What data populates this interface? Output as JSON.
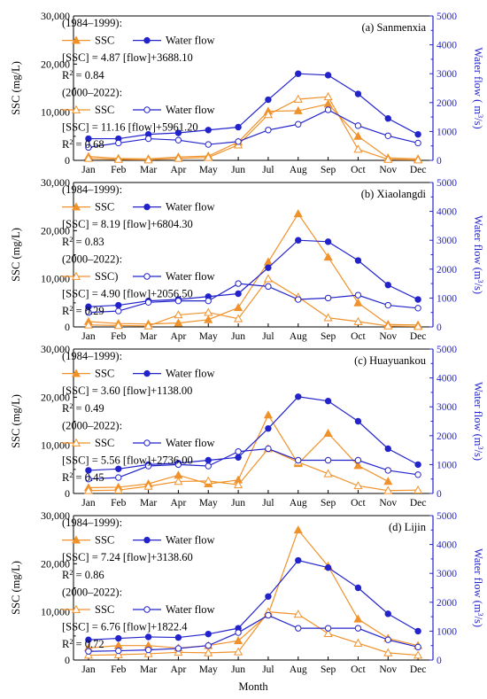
{
  "figure": {
    "xlabel": "Month",
    "colors": {
      "ssc": "#f0922b",
      "flow": "#2323cc",
      "axis": "#000000"
    }
  },
  "chart_data": [
    {
      "type": "line",
      "panel_label": "(a) Sanmenxia",
      "categories": [
        "Jan",
        "Feb",
        "Mar",
        "Apr",
        "May",
        "Jun",
        "Jul",
        "Aug",
        "Sep",
        "Oct",
        "Nov",
        "Dec"
      ],
      "y_left": {
        "label": "SSC (mg/L)",
        "ticks": [
          "0",
          "10,000",
          "20,000",
          "30,000"
        ],
        "lim": [
          0,
          30000
        ]
      },
      "y_right": {
        "label": "Water flow ( m³/s)",
        "ticks": [
          "0",
          "1000",
          "2000",
          "3000",
          "4000",
          "5000"
        ],
        "lim": [
          0,
          5000
        ]
      },
      "legend": {
        "p1_title": "(1984–1999):",
        "p1_ssc_label": "SSC",
        "p1_flow_label": "Water flow",
        "p1_eq": "[SSC] = 4.87 [flow]+3688.10",
        "p1_r2": "R² = 0.84",
        "p2_title": "(2000–2022):",
        "p2_ssc_label": "SSC",
        "p2_flow_label": "Water flow",
        "p2_eq": "[SSC] = 11.16 [flow]+5961.20",
        "p2_r2": "R² = 0.68"
      },
      "series": [
        {
          "period": "1984–1999",
          "variable": "SSC",
          "axis": "left",
          "marker": "triangle-filled",
          "values": [
            800,
            400,
            300,
            700,
            900,
            3800,
            10200,
            10300,
            11700,
            5000,
            500,
            300
          ]
        },
        {
          "period": "1984–1999",
          "variable": "Water flow",
          "axis": "right",
          "marker": "circle-filled",
          "values": [
            750,
            750,
            900,
            950,
            1050,
            1150,
            2100,
            3000,
            2950,
            2300,
            1450,
            900
          ]
        },
        {
          "period": "2000–2022",
          "variable": "SSC",
          "axis": "left",
          "marker": "triangle-open",
          "values": [
            400,
            200,
            100,
            400,
            600,
            3200,
            9500,
            12700,
            13200,
            2300,
            200,
            100
          ]
        },
        {
          "period": "2000–2022",
          "variable": "Water flow",
          "axis": "right",
          "marker": "circle-open",
          "values": [
            450,
            600,
            750,
            700,
            550,
            650,
            1050,
            1250,
            1750,
            1200,
            850,
            600
          ]
        }
      ]
    },
    {
      "type": "line",
      "panel_label": "(b) Xiaolangdi",
      "categories": [
        "Jan",
        "Feb",
        "Mar",
        "Apr",
        "May",
        "Jun",
        "Jul",
        "Aug",
        "Sep",
        "Oct",
        "Nov",
        "Dec"
      ],
      "y_left": {
        "label": "SSC (mg/L)",
        "ticks": [
          "0",
          "10,000",
          "20,000",
          "30,000"
        ],
        "lim": [
          0,
          30000
        ]
      },
      "y_right": {
        "label": "Water flow (m³/s)",
        "ticks": [
          "0",
          "1000",
          "2000",
          "3000",
          "4000",
          "5000"
        ],
        "lim": [
          0,
          5000
        ]
      },
      "legend": {
        "p1_title": "(1984–1999):",
        "p1_ssc_label": "SSC",
        "p1_flow_label": "Water flow",
        "p1_eq": "[SSC] = 8.19 [flow]+6804.30",
        "p1_r2": "R² = 0.83",
        "p2_title": "(2000–2022):",
        "p2_ssc_label": "SSC)",
        "p2_flow_label": "Water flow",
        "p2_eq": "[SSC] = 4.90 [flow]+2056.50",
        "p2_r2": "R² = 0.29"
      },
      "series": [
        {
          "period": "1984–1999",
          "variable": "SSC",
          "axis": "left",
          "marker": "triangle-filled",
          "values": [
            1100,
            700,
            600,
            800,
            1500,
            4000,
            13500,
            23500,
            14500,
            5000,
            500,
            400
          ]
        },
        {
          "period": "1984–1999",
          "variable": "Water flow",
          "axis": "right",
          "marker": "circle-filled",
          "values": [
            700,
            750,
            900,
            950,
            1050,
            1150,
            2050,
            3000,
            2950,
            2300,
            1450,
            950
          ]
        },
        {
          "period": "2000–2022",
          "variable": "SSC",
          "axis": "left",
          "marker": "triangle-open",
          "values": [
            400,
            300,
            200,
            2500,
            3000,
            1700,
            10000,
            6200,
            1900,
            1100,
            200,
            100
          ]
        },
        {
          "period": "2000–2022",
          "variable": "Water flow",
          "axis": "right",
          "marker": "circle-open",
          "values": [
            500,
            550,
            850,
            900,
            900,
            1500,
            1400,
            950,
            1000,
            1100,
            750,
            650
          ]
        }
      ]
    },
    {
      "type": "line",
      "panel_label": "(c) Huayuankou",
      "categories": [
        "Jan",
        "Feb",
        "Mar",
        "Apr",
        "May",
        "Jun",
        "Jul",
        "Aug",
        "Sep",
        "Oct",
        "Nov",
        "Dec"
      ],
      "y_left": {
        "label": "SSC (mg/L)",
        "ticks": [
          "0",
          "10,000",
          "20,000",
          "30,000"
        ],
        "lim": [
          0,
          30000
        ]
      },
      "y_right": {
        "label": "Water flow (m³/s)",
        "ticks": [
          "0",
          "1000",
          "2000",
          "3000",
          "4000",
          "5000"
        ],
        "lim": [
          0,
          5000
        ]
      },
      "legend": {
        "p1_title": "(1984–1999):",
        "p1_ssc_label": "SSC",
        "p1_flow_label": "Water flow",
        "p1_eq": "[SSC] = 3.60 [flow]+1138.00",
        "p1_r2": "R² = 0.49",
        "p2_title": "(2000–2022):",
        "p2_ssc_label": "SSC",
        "p2_flow_label": "Water flow",
        "p2_eq": "[SSC] = 5.56 [flow]+2736.00",
        "p2_r2": "R² = 0.45"
      },
      "series": [
        {
          "period": "1984–1999",
          "variable": "SSC",
          "axis": "left",
          "marker": "triangle-filled",
          "values": [
            1200,
            1300,
            2000,
            3800,
            2000,
            2800,
            16300,
            6200,
            12500,
            5800,
            2500,
            null
          ]
        },
        {
          "period": "1984–1999",
          "variable": "Water flow",
          "axis": "right",
          "marker": "circle-filled",
          "values": [
            800,
            850,
            1000,
            1050,
            1150,
            1250,
            2250,
            3350,
            3200,
            2500,
            1550,
            1000
          ]
        },
        {
          "period": "2000–2022",
          "variable": "SSC",
          "axis": "left",
          "marker": "triangle-open",
          "values": [
            600,
            700,
            1500,
            2500,
            2600,
            1800,
            9300,
            6500,
            4100,
            1600,
            600,
            700
          ]
        },
        {
          "period": "2000–2022",
          "variable": "Water flow",
          "axis": "right",
          "marker": "circle-open",
          "values": [
            500,
            550,
            950,
            1000,
            950,
            1450,
            1550,
            1150,
            1150,
            1150,
            800,
            650
          ]
        }
      ]
    },
    {
      "type": "line",
      "panel_label": "(d) Lijin",
      "categories": [
        "Jan",
        "Feb",
        "Mar",
        "Apr",
        "May",
        "Jun",
        "Jul",
        "Aug",
        "Sep",
        "Oct",
        "Nov",
        "Dec"
      ],
      "y_left": {
        "label": "SSC (mg/L)",
        "ticks": [
          "0",
          "10,000",
          "20,000",
          "30,000"
        ],
        "lim": [
          0,
          30000
        ]
      },
      "y_right": {
        "label": "Water flow (m³/s)",
        "ticks": [
          "0",
          "1000",
          "2000",
          "3000",
          "4000",
          "5000"
        ],
        "lim": [
          0,
          5000
        ]
      },
      "legend": {
        "p1_title": "(1984–1999):",
        "p1_ssc_label": "SSC",
        "p1_flow_label": "Water flow",
        "p1_eq": "[SSC] = 7.24 [flow]+3138.60",
        "p1_r2": "R² = 0.86",
        "p2_title": "(2000–2022):",
        "p2_ssc_label": "SSC",
        "p2_flow_label": "Water flow",
        "p2_eq": "[SSC] = 6.76 [flow]+1822.4",
        "p2_r2": "R² = 0.72"
      },
      "series": [
        {
          "period": "1984–1999",
          "variable": "SSC",
          "axis": "left",
          "marker": "triangle-filled",
          "values": [
            2500,
            3000,
            3000,
            2500,
            3000,
            4000,
            9500,
            27000,
            19500,
            8500,
            4500,
            3000
          ]
        },
        {
          "period": "1984–1999",
          "variable": "Water flow",
          "axis": "right",
          "marker": "circle-filled",
          "values": [
            700,
            750,
            800,
            780,
            900,
            1100,
            2200,
            3450,
            3200,
            2500,
            1600,
            1000
          ]
        },
        {
          "period": "2000–2022",
          "variable": "SSC",
          "axis": "left",
          "marker": "triangle-open",
          "values": [
            1000,
            1100,
            1300,
            1600,
            1500,
            1700,
            10000,
            9500,
            5500,
            3500,
            1500,
            1000
          ]
        },
        {
          "period": "2000–2022",
          "variable": "Water flow",
          "axis": "right",
          "marker": "circle-open",
          "values": [
            300,
            320,
            350,
            400,
            500,
            950,
            1550,
            1100,
            1100,
            1100,
            700,
            450
          ]
        }
      ]
    }
  ]
}
